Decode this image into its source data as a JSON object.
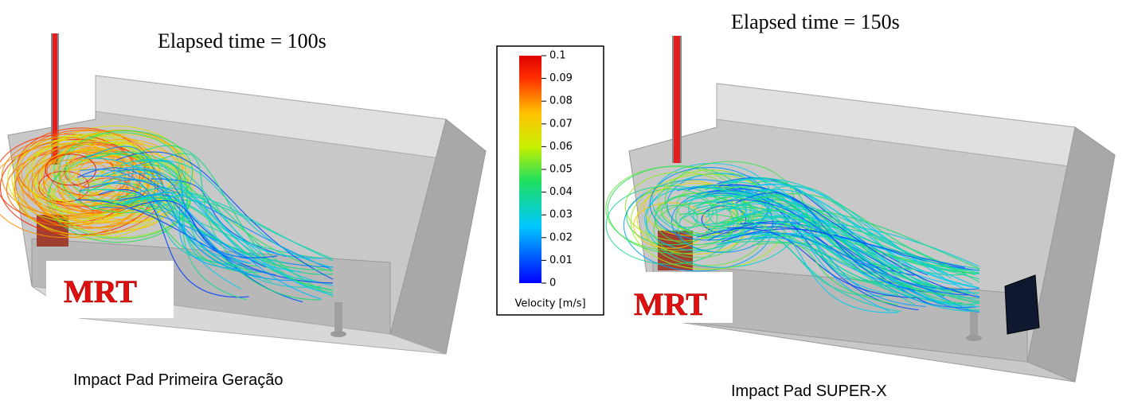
{
  "left_panel": {
    "title": "Elapsed time = 100s",
    "watermark": "MRT",
    "caption": "Impact Pad Primeira Geração"
  },
  "right_panel": {
    "title": "Elapsed time = 150s",
    "watermark": "MRT",
    "caption": "Impact Pad SUPER-X"
  },
  "colorbar": {
    "label": "Velocity [m/s]",
    "ticks": [
      0.1,
      0.09,
      0.08,
      0.07,
      0.06,
      0.05,
      0.04,
      0.03,
      0.02,
      0.01,
      0
    ]
  }
}
